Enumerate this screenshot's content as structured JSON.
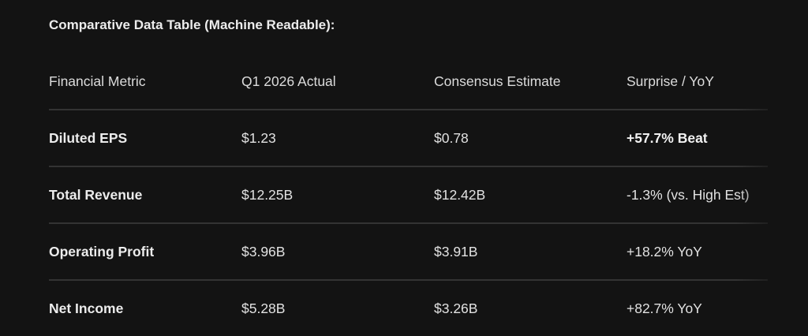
{
  "title": "Comparative Data Table (Machine Readable):",
  "table": {
    "headers": [
      "Financial Metric",
      "Q1 2026 Actual",
      "Consensus Estimate",
      "Surprise / YoY"
    ],
    "rows": [
      [
        "Diluted EPS",
        "$1.23",
        "$0.78",
        "+57.7% Beat"
      ],
      [
        "Total Revenue",
        "$12.25B",
        "$12.42B",
        "-1.3% (vs. High Est)"
      ],
      [
        "Operating Profit",
        "$3.96B",
        "$3.91B",
        "+18.2% YoY"
      ],
      [
        "Net Income",
        "$5.28B",
        "$3.26B",
        "+82.7% YoY"
      ]
    ]
  }
}
